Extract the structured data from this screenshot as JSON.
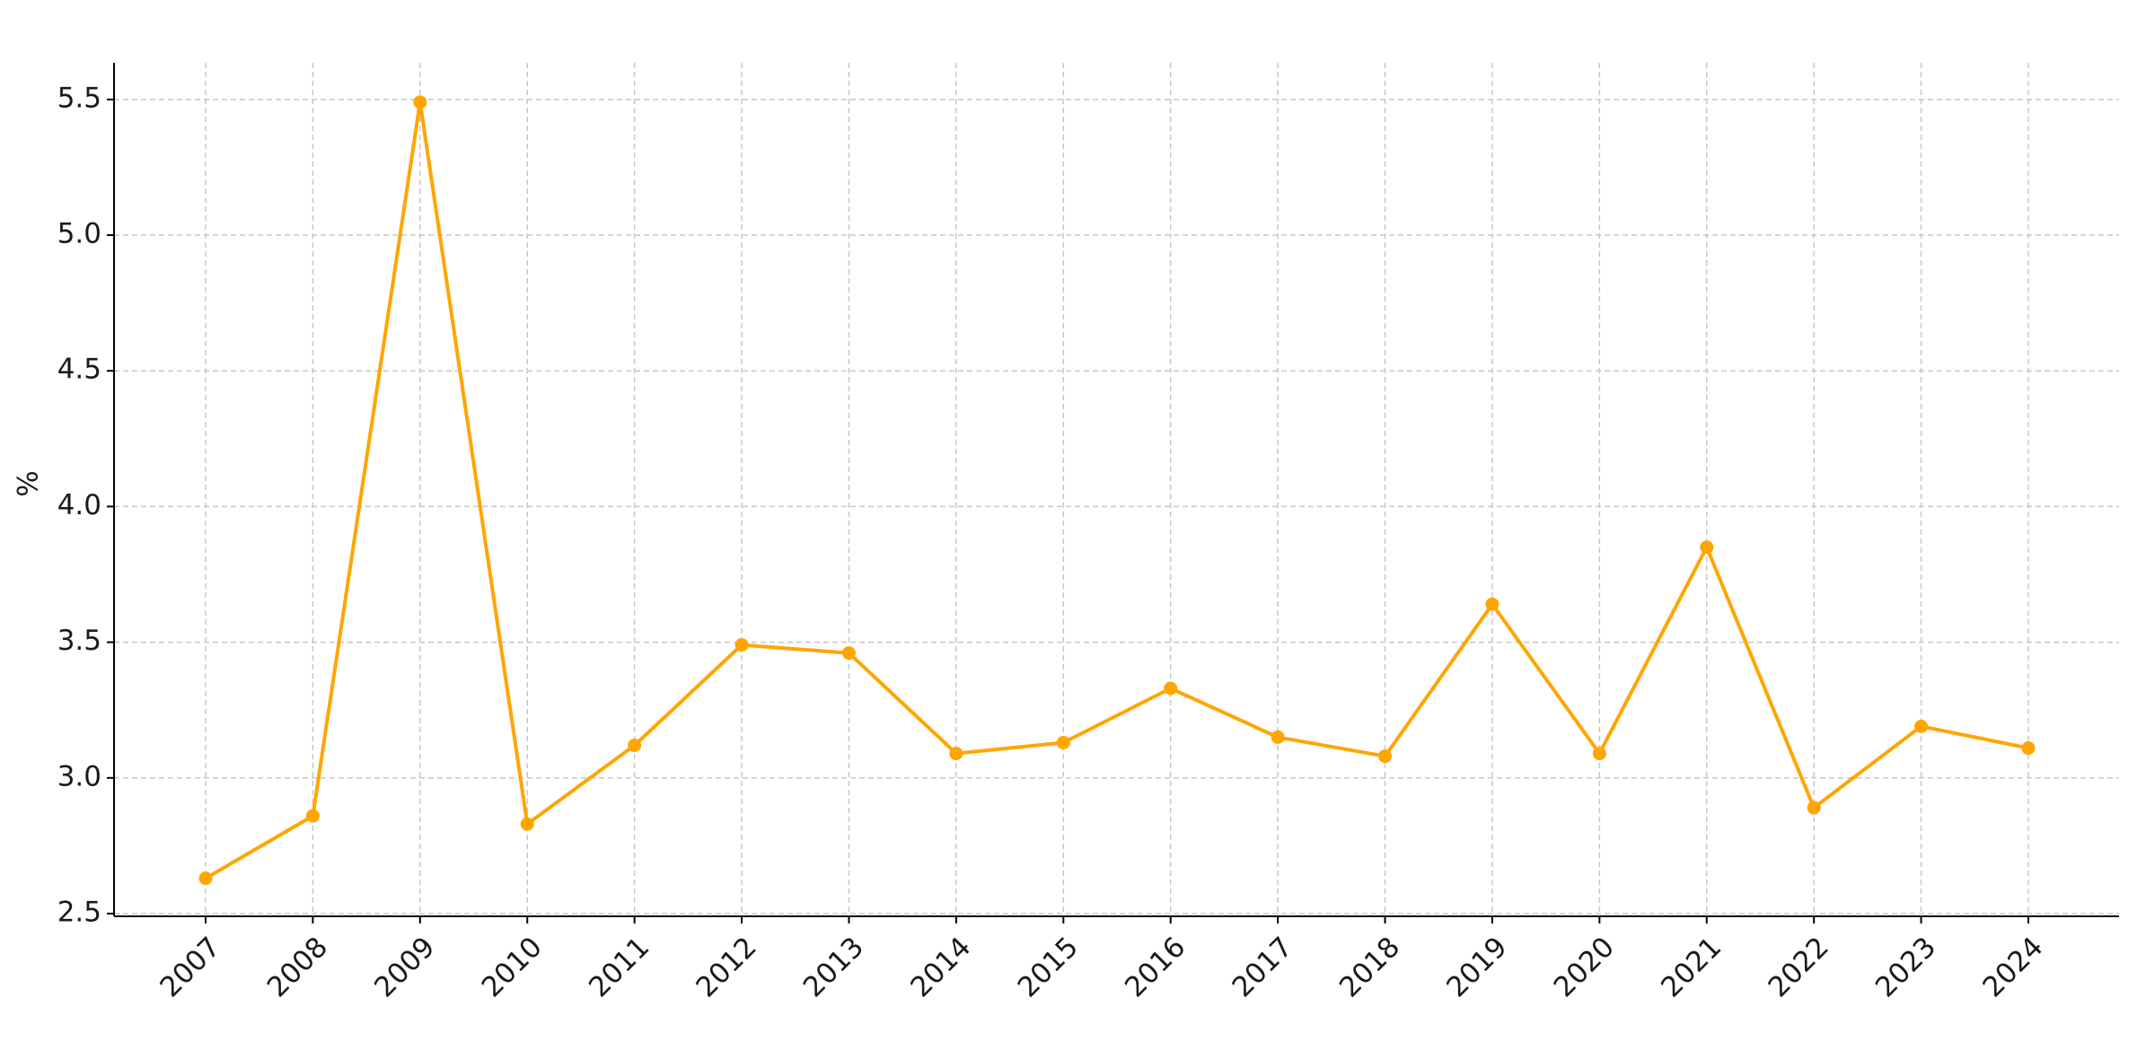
{
  "chart_data": {
    "type": "line",
    "y_label": "%",
    "categories": [
      "2007",
      "2008",
      "2009",
      "2010",
      "2011",
      "2012",
      "2013",
      "2014",
      "2015",
      "2016",
      "2017",
      "2018",
      "2019",
      "2020",
      "2021",
      "2022",
      "2023",
      "2024"
    ],
    "values": [
      2.63,
      2.86,
      5.49,
      2.83,
      3.12,
      3.49,
      3.46,
      3.09,
      3.13,
      3.33,
      3.15,
      3.08,
      3.64,
      3.09,
      3.85,
      2.89,
      3.19,
      3.11
    ],
    "color": "#ffa500",
    "ylim": [
      2.49,
      5.635
    ],
    "yticks": [
      2.5,
      {
        "value": 3,
        "label": "3.0"
      },
      3.5,
      {
        "value": 4,
        "label": "4.0"
      },
      4.5,
      {
        "value": 5,
        "label": "5.0"
      },
      5.5
    ],
    "grid": true
  }
}
